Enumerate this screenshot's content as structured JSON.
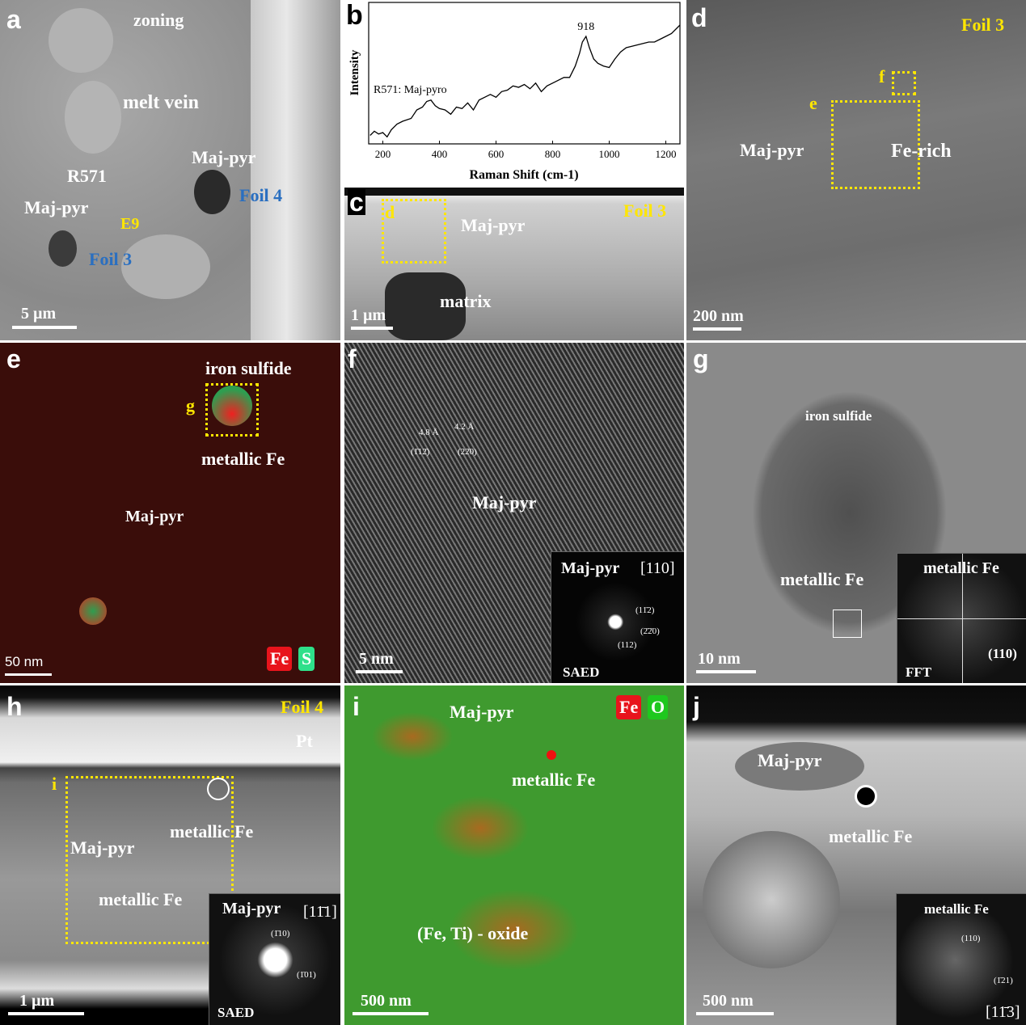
{
  "panels": {
    "a": {
      "letter": "a",
      "zoning": "zoning",
      "melt_vein": "melt vein",
      "maj_pyr_1": "Maj-pyr",
      "maj_pyr_2": "Maj-pyr",
      "r571": "R571",
      "e9": "E9",
      "foil3": "Foil 3",
      "foil4": "Foil 4",
      "scale": "5 µm"
    },
    "b": {
      "letter": "b"
    },
    "c": {
      "letter": "c",
      "box_d": "d",
      "maj_pyr": "Maj-pyr",
      "foil": "Foil 3",
      "matrix": "matrix",
      "scale": "1 µm"
    },
    "d": {
      "letter": "d",
      "foil": "Foil 3",
      "box_f": "f",
      "box_e": "e",
      "maj_pyr": "Maj-pyr",
      "fe_rich": "Fe-rich",
      "scale": "200 nm"
    },
    "e": {
      "letter": "e",
      "iron_sulfide": "iron sulfide",
      "box_g": "g",
      "metallic_fe": "metallic Fe",
      "maj_pyr": "Maj-pyr",
      "scale": "50 nm",
      "legend_fe": "Fe",
      "legend_s": "S",
      "colors": {
        "fe": "#e8141c",
        "s": "#2ee08a"
      }
    },
    "f": {
      "letter": "f",
      "d1": "4.8 Å",
      "d2": "4.2 Å",
      "plane1": "(1̄12̄)",
      "plane2": "(22̄0)",
      "maj_pyr": "Maj-pyr",
      "scale": "5 nm",
      "inset": {
        "phase": "Maj-pyr",
        "zone": "[110]",
        "spot1": "(11̄2)",
        "spot2": "(2̄2̄0)",
        "spot3": "(112)",
        "method": "SAED"
      }
    },
    "g": {
      "letter": "g",
      "iron_sulfide": "iron sulfide",
      "metallic_fe": "metallic Fe",
      "scale": "10 nm",
      "inset": {
        "phase": "metallic Fe",
        "spot": "(110)",
        "method": "FFT"
      }
    },
    "h": {
      "letter": "h",
      "foil": "Foil 4",
      "pt": "Pt",
      "box_i": "i",
      "metallic_fe_1": "metallic Fe",
      "metallic_fe_2": "metallic Fe",
      "maj_pyr": "Maj-pyr",
      "scale": "1 µm",
      "inset": {
        "phase": "Maj-pyr",
        "zone": "[11̄1]",
        "spot1": "(1̄10)",
        "spot2": "(1̄01)",
        "method": "SAED"
      }
    },
    "i": {
      "letter": "i",
      "maj_pyr": "Maj-pyr",
      "metallic_fe": "metallic Fe",
      "oxide": "(Fe, Ti) - oxide",
      "scale": "500 nm",
      "legend_fe": "Fe",
      "legend_o": "O",
      "colors": {
        "fe": "#e8141c",
        "o": "#1ec81e"
      }
    },
    "j": {
      "letter": "j",
      "maj_pyr": "Maj-pyr",
      "metallic_fe": "metallic Fe",
      "scale": "500 nm",
      "inset": {
        "phase": "metallic Fe",
        "spot1": "(110)",
        "spot2": "(1̄21)",
        "zone": "[11̄3]"
      }
    }
  },
  "chart_data": {
    "type": "line",
    "title": "",
    "xlabel": "Raman Shift (cm-1)",
    "ylabel": "Intensity",
    "xlim": [
      150,
      1250
    ],
    "ylim": [
      0,
      100
    ],
    "xticks": [
      200,
      400,
      600,
      800,
      1000,
      1200
    ],
    "grid": false,
    "annotation": "R571: Maj-pyro",
    "peak_label": "918",
    "peak_x": 918,
    "series": [
      {
        "x": [
          155,
          170,
          185,
          200,
          215,
          230,
          250,
          270,
          300,
          320,
          340,
          355,
          370,
          385,
          400,
          420,
          440,
          460,
          480,
          500,
          520,
          540,
          560,
          580,
          600,
          620,
          640,
          660,
          680,
          700,
          720,
          740,
          760,
          780,
          800,
          820,
          840,
          860,
          880,
          895,
          905,
          918,
          930,
          945,
          960,
          980,
          1000,
          1020,
          1040,
          1060,
          1080,
          1100,
          1120,
          1140,
          1160,
          1180,
          1200,
          1220,
          1240,
          1250
        ],
        "y": [
          6,
          9,
          7,
          8,
          5,
          10,
          14,
          16,
          18,
          24,
          26,
          30,
          31,
          27,
          25,
          24,
          21,
          26,
          25,
          29,
          24,
          31,
          33,
          35,
          33,
          37,
          38,
          41,
          40,
          42,
          39,
          43,
          37,
          41,
          43,
          45,
          47,
          47,
          55,
          64,
          72,
          76,
          68,
          60,
          57,
          55,
          54,
          60,
          65,
          68,
          69,
          70,
          71,
          72,
          72,
          74,
          76,
          78,
          82,
          84
        ]
      }
    ]
  }
}
